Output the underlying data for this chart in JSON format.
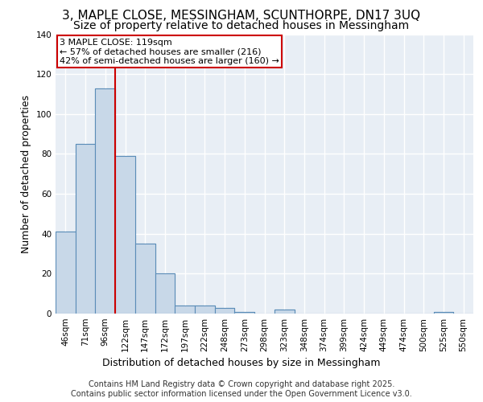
{
  "title_line1": "3, MAPLE CLOSE, MESSINGHAM, SCUNTHORPE, DN17 3UQ",
  "title_line2": "Size of property relative to detached houses in Messingham",
  "xlabel": "Distribution of detached houses by size in Messingham",
  "ylabel": "Number of detached properties",
  "bar_labels": [
    "46sqm",
    "71sqm",
    "96sqm",
    "122sqm",
    "147sqm",
    "172sqm",
    "197sqm",
    "222sqm",
    "248sqm",
    "273sqm",
    "298sqm",
    "323sqm",
    "348sqm",
    "374sqm",
    "399sqm",
    "424sqm",
    "449sqm",
    "474sqm",
    "500sqm",
    "525sqm",
    "550sqm"
  ],
  "bar_values": [
    41,
    85,
    113,
    79,
    35,
    20,
    4,
    4,
    3,
    1,
    0,
    2,
    0,
    0,
    0,
    0,
    0,
    0,
    0,
    1,
    0
  ],
  "bar_color": "#c8d8e8",
  "bar_edge_color": "#5b8db8",
  "background_color": "#e8eef5",
  "grid_color": "#ffffff",
  "annotation_text": "3 MAPLE CLOSE: 119sqm\n← 57% of detached houses are smaller (216)\n42% of semi-detached houses are larger (160) →",
  "annotation_box_color": "#ffffff",
  "annotation_border_color": "#cc0000",
  "redline_x": 2.5,
  "ylim": [
    0,
    140
  ],
  "yticks": [
    0,
    20,
    40,
    60,
    80,
    100,
    120,
    140
  ],
  "footer_line1": "Contains HM Land Registry data © Crown copyright and database right 2025.",
  "footer_line2": "Contains public sector information licensed under the Open Government Licence v3.0.",
  "title_fontsize": 11,
  "subtitle_fontsize": 10,
  "axis_label_fontsize": 9,
  "tick_fontsize": 7.5,
  "annotation_fontsize": 8,
  "footer_fontsize": 7
}
